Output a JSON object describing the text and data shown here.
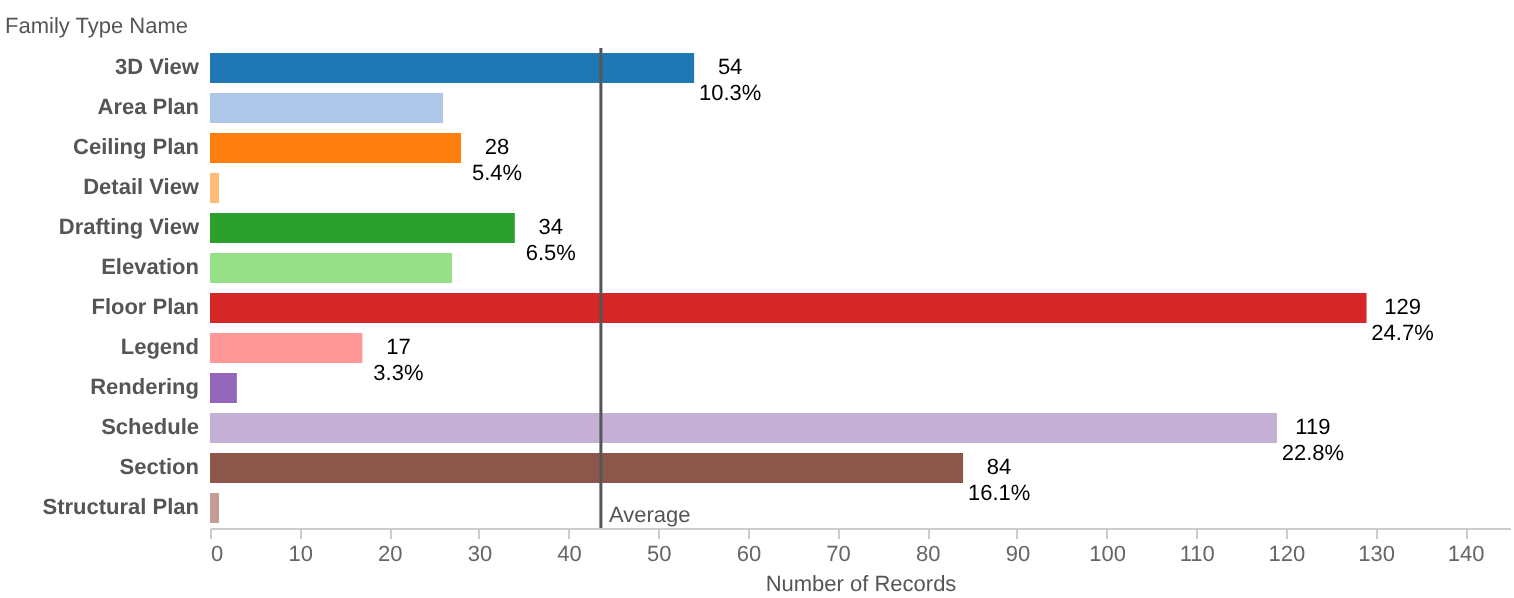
{
  "chart_data": {
    "type": "bar",
    "orientation": "horizontal",
    "ylabel": "Family Type Name",
    "xlabel": "Number of Records",
    "categories": [
      "3D View",
      "Area Plan",
      "Ceiling Plan",
      "Detail View",
      "Drafting View",
      "Elevation",
      "Floor Plan",
      "Legend",
      "Rendering",
      "Schedule",
      "Section",
      "Structural Plan"
    ],
    "values": [
      54,
      26,
      28,
      1,
      34,
      27,
      129,
      17,
      3,
      119,
      84,
      1
    ],
    "colors": [
      "#1f77b4",
      "#aec7e8",
      "#ff7f0e",
      "#ffbb78",
      "#2ca02c",
      "#98df8a",
      "#d62728",
      "#ff9896",
      "#9467bd",
      "#c5b0d5",
      "#8c564b",
      "#c49c94"
    ],
    "value_labels": [
      "54\n10.3%",
      null,
      "28\n5.4%",
      null,
      "34\n6.5%",
      null,
      "129\n24.7%",
      "17\n3.3%",
      null,
      "119\n22.8%",
      "84\n16.1%",
      null
    ],
    "xlim": [
      0,
      145
    ],
    "xticks": [
      0,
      10,
      20,
      30,
      40,
      50,
      60,
      70,
      80,
      90,
      100,
      110,
      120,
      130,
      140
    ],
    "ref_lines": [
      {
        "axis": "x",
        "value": 43.6,
        "label": "Average",
        "color": "#555555"
      }
    ],
    "grid": false
  }
}
